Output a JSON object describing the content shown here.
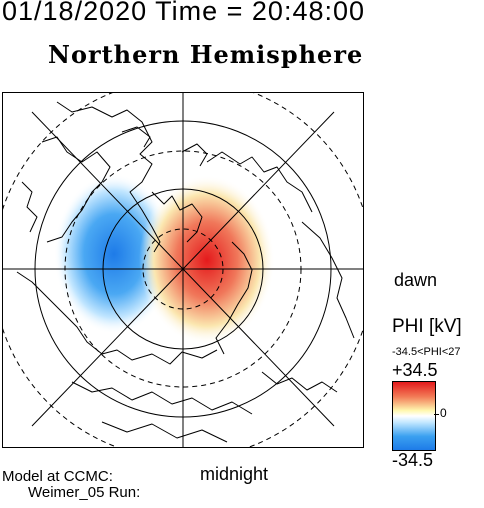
{
  "header": {
    "timestamp": "01/18/2020 Time = 20:48:00",
    "title": "Northern Hemisphere"
  },
  "map": {
    "dawn_label": "dawn",
    "midnight_label": "midnight"
  },
  "colorbar": {
    "quantity_label": "PHI [kV]",
    "range_text": "-34.5<PHI<27",
    "max_label": "+34.5",
    "zero_label": "0",
    "min_label": "-34.5",
    "colors": {
      "positive": "#e41a1c",
      "neutral": "#ffffff",
      "negative": "#1e7be8"
    }
  },
  "credits": {
    "line1": "Model at CCMC:",
    "line2": "Weimer_05 Run:"
  }
}
